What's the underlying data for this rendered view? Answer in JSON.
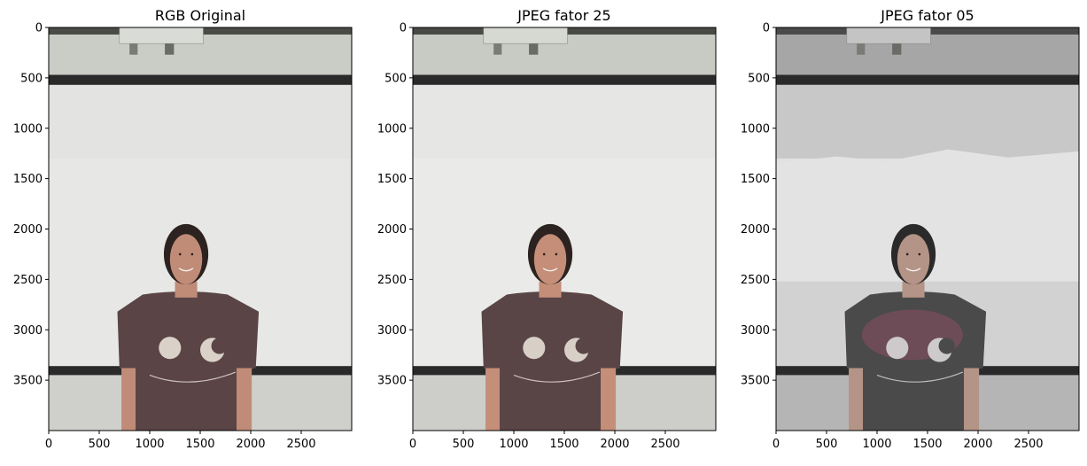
{
  "figure": {
    "panels": [
      {
        "title": "RGB Original",
        "variant": "original",
        "palette": {
          "ceiling": "#c9cdc6",
          "ceilingDark": "#4a4a46",
          "projector": "#d9dbd6",
          "rail": "#2a2a2a",
          "screen": "#e7e8e6",
          "screenShade": "#dedfdc",
          "floorWall": "#cfd0cc",
          "shirt": "#5a4446",
          "skin": "#c08c78",
          "hair": "#2c2220",
          "print": "#e8e2d6"
        }
      },
      {
        "title": "JPEG fator 25",
        "variant": "jpeg25",
        "palette": {
          "ceiling": "#c7cbc3",
          "ceilingDark": "#484844",
          "projector": "#d6d8d2",
          "rail": "#2a2a2a",
          "screen": "#eaebe8",
          "screenShade": "#e2e3df",
          "floorWall": "#cdcec9",
          "shirt": "#594446",
          "skin": "#c48e78",
          "hair": "#2c2220",
          "print": "#e6e0d4"
        }
      },
      {
        "title": "JPEG fator 05",
        "variant": "jpeg05",
        "palette": {
          "ceiling": "#a6a6a6",
          "ceilingDark": "#4a4a4a",
          "projector": "#c4c4c4",
          "rail": "#2a2a2a",
          "screen": "#e1e1e1",
          "screenShade": "#c8c8c8",
          "floorWall": "#b5b5b5",
          "shirt": "#4a4a4a",
          "skin": "#b49486",
          "hair": "#2a2a2a",
          "print": "#d8d8d8",
          "tint": "#8a4f62"
        }
      }
    ]
  },
  "chart_data": [
    {
      "type": "image",
      "title": "RGB Original",
      "xlim": [
        0,
        3000
      ],
      "ylim": [
        4000,
        0
      ],
      "xticks": [
        0,
        500,
        1000,
        1500,
        2000,
        2500
      ],
      "yticks": [
        0,
        500,
        1000,
        1500,
        2000,
        2500,
        3000,
        3500
      ]
    },
    {
      "type": "image",
      "title": "JPEG fator 25",
      "xlim": [
        0,
        3000
      ],
      "ylim": [
        4000,
        0
      ],
      "xticks": [
        0,
        500,
        1000,
        1500,
        2000,
        2500
      ],
      "yticks": [
        0,
        500,
        1000,
        1500,
        2000,
        2500,
        3000,
        3500
      ]
    },
    {
      "type": "image",
      "title": "JPEG fator 05",
      "xlim": [
        0,
        3000
      ],
      "ylim": [
        4000,
        0
      ],
      "xticks": [
        0,
        500,
        1000,
        1500,
        2000,
        2500
      ],
      "yticks": [
        0,
        500,
        1000,
        1500,
        2000,
        2500,
        3000,
        3500
      ]
    }
  ]
}
